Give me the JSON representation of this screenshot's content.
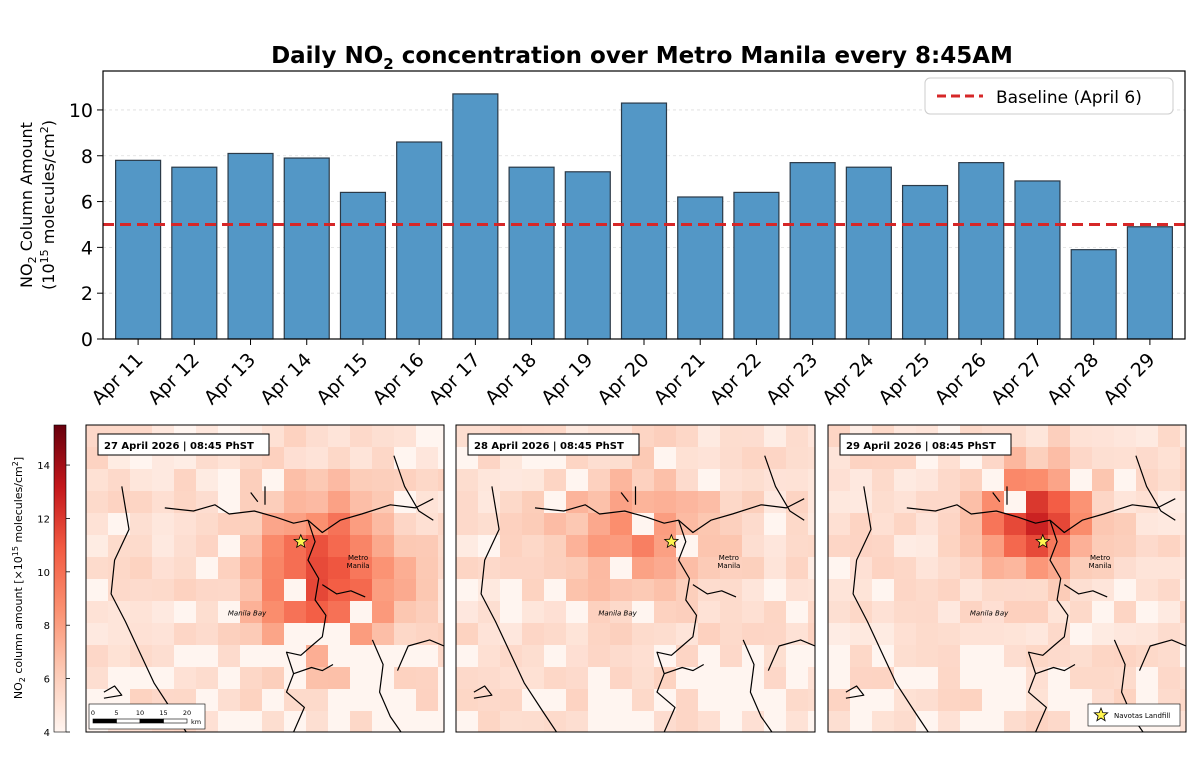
{
  "chart_data": [
    {
      "type": "bar",
      "title_main": "Daily NO",
      "title_sub": "2",
      "title_rest": " concentration over Metro Manila every 8:45AM",
      "ylabel_line1_a": "NO",
      "ylabel_line1_sub": "2",
      "ylabel_line1_b": " Column Amount",
      "ylabel_line2_a": "(10",
      "ylabel_line2_sup": "15",
      "ylabel_line2_b": " molecules/cm",
      "ylabel_line2_sup2": "2",
      "ylabel_line2_c": ")",
      "categories": [
        "Apr 11",
        "Apr 12",
        "Apr 13",
        "Apr 14",
        "Apr 15",
        "Apr 16",
        "Apr 17",
        "Apr 18",
        "Apr 19",
        "Apr 20",
        "Apr 21",
        "Apr 22",
        "Apr 23",
        "Apr 24",
        "Apr 25",
        "Apr 26",
        "Apr 27",
        "Apr 28",
        "Apr 29"
      ],
      "values": [
        7.8,
        7.5,
        8.1,
        7.9,
        6.4,
        8.6,
        10.7,
        7.5,
        7.3,
        10.3,
        6.2,
        6.4,
        7.7,
        7.5,
        6.7,
        7.7,
        6.9,
        3.9,
        4.9
      ],
      "ylim": [
        0,
        11.7
      ],
      "yticks": [
        0,
        2,
        4,
        6,
        8,
        10
      ],
      "bar_color": "#5397c6",
      "baseline": {
        "value": 5.0,
        "label": "Baseline (April 6)",
        "color": "#d62728"
      },
      "legend_position": "top-right",
      "grid": true
    },
    {
      "type": "heatmap",
      "colorbar": {
        "label_a": "NO",
        "label_sub": "2",
        "label_b": " column amount [×10",
        "label_sup": "15",
        "label_c": " molecules/cm",
        "label_sup2": "2",
        "label_d": "]",
        "range": [
          4,
          15.5
        ],
        "ticks": [
          4,
          6,
          8,
          10,
          12,
          14
        ],
        "colormap": "Reds"
      },
      "panels": [
        {
          "title": "27 April 2026 | 08:45 PhST",
          "label_metro": [
            "Metro",
            "Manila"
          ],
          "label_bay": "Manila Bay"
        },
        {
          "title": "28 April 2026 | 08:45 PhST",
          "label_metro": [
            "Metro",
            "Manila"
          ],
          "label_bay": "Manila Bay"
        },
        {
          "title": "29 April 2026 | 08:45 PhST",
          "label_metro": [
            "Metro",
            "Manila"
          ],
          "label_bay": "Manila Bay"
        }
      ],
      "scalebar": {
        "ticks": [
          "0",
          "5",
          "10",
          "15",
          "20"
        ],
        "unit": "km"
      },
      "marker_legend": "Navotas Landfill"
    }
  ]
}
